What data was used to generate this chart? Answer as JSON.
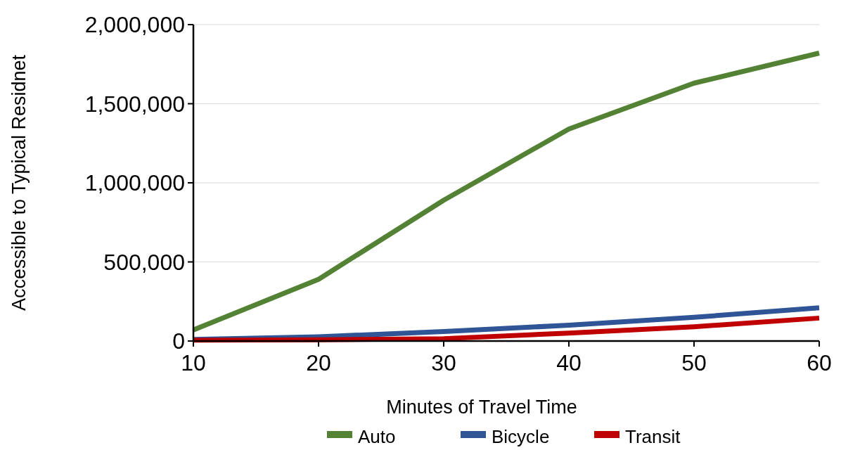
{
  "chart_data": {
    "type": "line",
    "xlabel": "Minutes of Travel Time",
    "ylabel": "Accessible to Typical Residnet",
    "x": [
      10,
      20,
      30,
      40,
      50,
      60
    ],
    "series": [
      {
        "name": "Auto",
        "color": "#548235",
        "values": [
          70000,
          390000,
          890000,
          1340000,
          1630000,
          1820000
        ]
      },
      {
        "name": "Bicycle",
        "color": "#2f5597",
        "values": [
          10000,
          27000,
          60000,
          100000,
          150000,
          210000
        ]
      },
      {
        "name": "Transit",
        "color": "#c00000",
        "values": [
          5000,
          8000,
          15000,
          50000,
          90000,
          145000
        ]
      }
    ],
    "xlim": [
      10,
      60
    ],
    "xticks": [
      10,
      20,
      30,
      40,
      50,
      60
    ],
    "ylim": [
      0,
      2000000
    ],
    "yticks": [
      {
        "value": 0,
        "label": "0"
      },
      {
        "value": 500000,
        "label": "500,000"
      },
      {
        "value": 1000000,
        "label": "1,000,000"
      },
      {
        "value": 1500000,
        "label": "1,500,000"
      },
      {
        "value": 2000000,
        "label": "2,000,000"
      }
    ],
    "grid": "y",
    "legend": "bottom",
    "marker": "none",
    "line_style": "solid"
  }
}
